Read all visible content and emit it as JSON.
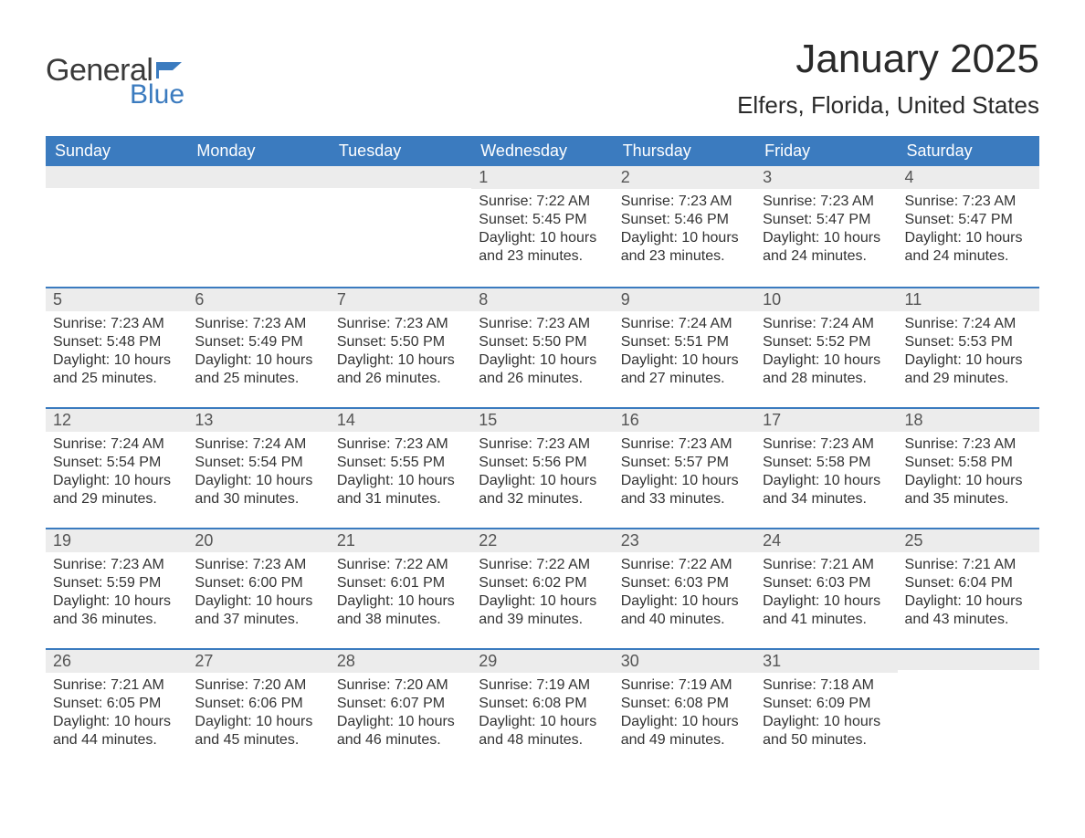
{
  "brand": {
    "general": "General",
    "blue": "Blue"
  },
  "title": "January 2025",
  "location": "Elfers, Florida, United States",
  "colors": {
    "header_bg": "#3b7bbf",
    "header_text": "#ffffff",
    "daynum_bg": "#ececec",
    "daynum_border": "#3b7bbf",
    "body_text": "#333333",
    "page_bg": "#ffffff",
    "logo_gray": "#3a3a3a",
    "logo_blue": "#3b7bbf"
  },
  "typography": {
    "month_title_fontsize": 44,
    "location_fontsize": 26,
    "weekday_fontsize": 18,
    "daynum_fontsize": 18,
    "cell_fontsize": 16
  },
  "layout": {
    "leading_blanks": 3,
    "trailing_blanks": 1,
    "columns": 7,
    "rows": 5
  },
  "weekdays": [
    "Sunday",
    "Monday",
    "Tuesday",
    "Wednesday",
    "Thursday",
    "Friday",
    "Saturday"
  ],
  "days": [
    {
      "n": 1,
      "sunrise": "7:22 AM",
      "sunset": "5:45 PM",
      "daylight": "10 hours and 23 minutes."
    },
    {
      "n": 2,
      "sunrise": "7:23 AM",
      "sunset": "5:46 PM",
      "daylight": "10 hours and 23 minutes."
    },
    {
      "n": 3,
      "sunrise": "7:23 AM",
      "sunset": "5:47 PM",
      "daylight": "10 hours and 24 minutes."
    },
    {
      "n": 4,
      "sunrise": "7:23 AM",
      "sunset": "5:47 PM",
      "daylight": "10 hours and 24 minutes."
    },
    {
      "n": 5,
      "sunrise": "7:23 AM",
      "sunset": "5:48 PM",
      "daylight": "10 hours and 25 minutes."
    },
    {
      "n": 6,
      "sunrise": "7:23 AM",
      "sunset": "5:49 PM",
      "daylight": "10 hours and 25 minutes."
    },
    {
      "n": 7,
      "sunrise": "7:23 AM",
      "sunset": "5:50 PM",
      "daylight": "10 hours and 26 minutes."
    },
    {
      "n": 8,
      "sunrise": "7:23 AM",
      "sunset": "5:50 PM",
      "daylight": "10 hours and 26 minutes."
    },
    {
      "n": 9,
      "sunrise": "7:24 AM",
      "sunset": "5:51 PM",
      "daylight": "10 hours and 27 minutes."
    },
    {
      "n": 10,
      "sunrise": "7:24 AM",
      "sunset": "5:52 PM",
      "daylight": "10 hours and 28 minutes."
    },
    {
      "n": 11,
      "sunrise": "7:24 AM",
      "sunset": "5:53 PM",
      "daylight": "10 hours and 29 minutes."
    },
    {
      "n": 12,
      "sunrise": "7:24 AM",
      "sunset": "5:54 PM",
      "daylight": "10 hours and 29 minutes."
    },
    {
      "n": 13,
      "sunrise": "7:24 AM",
      "sunset": "5:54 PM",
      "daylight": "10 hours and 30 minutes."
    },
    {
      "n": 14,
      "sunrise": "7:23 AM",
      "sunset": "5:55 PM",
      "daylight": "10 hours and 31 minutes."
    },
    {
      "n": 15,
      "sunrise": "7:23 AM",
      "sunset": "5:56 PM",
      "daylight": "10 hours and 32 minutes."
    },
    {
      "n": 16,
      "sunrise": "7:23 AM",
      "sunset": "5:57 PM",
      "daylight": "10 hours and 33 minutes."
    },
    {
      "n": 17,
      "sunrise": "7:23 AM",
      "sunset": "5:58 PM",
      "daylight": "10 hours and 34 minutes."
    },
    {
      "n": 18,
      "sunrise": "7:23 AM",
      "sunset": "5:58 PM",
      "daylight": "10 hours and 35 minutes."
    },
    {
      "n": 19,
      "sunrise": "7:23 AM",
      "sunset": "5:59 PM",
      "daylight": "10 hours and 36 minutes."
    },
    {
      "n": 20,
      "sunrise": "7:23 AM",
      "sunset": "6:00 PM",
      "daylight": "10 hours and 37 minutes."
    },
    {
      "n": 21,
      "sunrise": "7:22 AM",
      "sunset": "6:01 PM",
      "daylight": "10 hours and 38 minutes."
    },
    {
      "n": 22,
      "sunrise": "7:22 AM",
      "sunset": "6:02 PM",
      "daylight": "10 hours and 39 minutes."
    },
    {
      "n": 23,
      "sunrise": "7:22 AM",
      "sunset": "6:03 PM",
      "daylight": "10 hours and 40 minutes."
    },
    {
      "n": 24,
      "sunrise": "7:21 AM",
      "sunset": "6:03 PM",
      "daylight": "10 hours and 41 minutes."
    },
    {
      "n": 25,
      "sunrise": "7:21 AM",
      "sunset": "6:04 PM",
      "daylight": "10 hours and 43 minutes."
    },
    {
      "n": 26,
      "sunrise": "7:21 AM",
      "sunset": "6:05 PM",
      "daylight": "10 hours and 44 minutes."
    },
    {
      "n": 27,
      "sunrise": "7:20 AM",
      "sunset": "6:06 PM",
      "daylight": "10 hours and 45 minutes."
    },
    {
      "n": 28,
      "sunrise": "7:20 AM",
      "sunset": "6:07 PM",
      "daylight": "10 hours and 46 minutes."
    },
    {
      "n": 29,
      "sunrise": "7:19 AM",
      "sunset": "6:08 PM",
      "daylight": "10 hours and 48 minutes."
    },
    {
      "n": 30,
      "sunrise": "7:19 AM",
      "sunset": "6:08 PM",
      "daylight": "10 hours and 49 minutes."
    },
    {
      "n": 31,
      "sunrise": "7:18 AM",
      "sunset": "6:09 PM",
      "daylight": "10 hours and 50 minutes."
    }
  ],
  "labels": {
    "sunrise_prefix": "Sunrise: ",
    "sunset_prefix": "Sunset: ",
    "daylight_prefix": "Daylight: "
  }
}
